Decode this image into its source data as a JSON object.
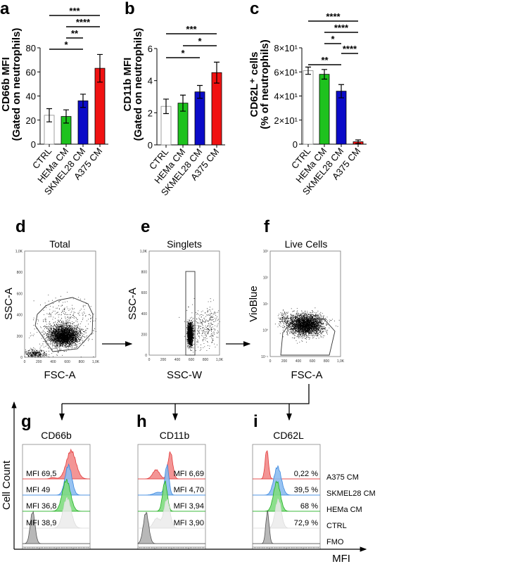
{
  "chart_data": [
    {
      "panel": "a",
      "type": "bar",
      "ylabel_line1": "CD66b MFI",
      "ylabel_line2": "(Gated on neutrophils)",
      "categories": [
        "CTRL",
        "HEMa CM",
        "SKMEL28 CM",
        "A375 CM"
      ],
      "values": [
        24,
        23,
        36,
        63
      ],
      "errors": [
        5.5,
        5.5,
        5.5,
        11.5
      ],
      "ylim": [
        0,
        80
      ],
      "yticks": [
        0,
        20,
        40,
        60,
        80
      ],
      "ytick_labels": [
        "0",
        "20",
        "40",
        "60",
        "80"
      ],
      "significance": [
        {
          "from": 0,
          "to": 3,
          "label": "***"
        },
        {
          "from": 1,
          "to": 3,
          "label": "****"
        },
        {
          "from": 1,
          "to": 2,
          "label": "**"
        },
        {
          "from": 0,
          "to": 2,
          "label": "*"
        }
      ]
    },
    {
      "panel": "b",
      "type": "bar",
      "ylabel_line1": "CD11b MFI",
      "ylabel_line2": "(Gated on neutrophils)",
      "categories": [
        "CTRL",
        "HEMa CM",
        "SKMEL28 CM",
        "A375 CM"
      ],
      "values": [
        2.4,
        2.6,
        3.3,
        4.5
      ],
      "errors": [
        0.45,
        0.5,
        0.4,
        0.65
      ],
      "ylim": [
        0,
        6
      ],
      "yticks": [
        0,
        2,
        4,
        6
      ],
      "ytick_labels": [
        "0",
        "2",
        "4",
        "6"
      ],
      "significance": [
        {
          "from": 0,
          "to": 3,
          "label": "***"
        },
        {
          "from": 1,
          "to": 3,
          "label": "*"
        },
        {
          "from": 0,
          "to": 2,
          "label": "*"
        }
      ]
    },
    {
      "panel": "c",
      "type": "bar",
      "ylabel_line1": "CD62L⁺ cells",
      "ylabel_line2": "(% of neutrophils)",
      "categories": [
        "CTRL",
        "HEMa CM",
        "SKMEL28 CM",
        "A375 CM"
      ],
      "values": [
        61,
        58,
        44,
        2
      ],
      "errors": [
        3,
        4,
        5.5,
        1.5
      ],
      "ylim": [
        0,
        80
      ],
      "yticks": [
        0,
        20,
        40,
        60,
        80
      ],
      "ytick_labels": [
        "0",
        "2×10¹",
        "4×10¹",
        "6×10¹",
        "8×10¹"
      ],
      "significance": [
        {
          "from": 0,
          "to": 3,
          "label": "****"
        },
        {
          "from": 1,
          "to": 3,
          "label": "****"
        },
        {
          "from": 1,
          "to": 2,
          "label": "*"
        },
        {
          "from": 2,
          "to": 3,
          "label": "****"
        },
        {
          "from": 0,
          "to": 2,
          "label": "**"
        }
      ]
    }
  ],
  "colors": {
    "CTRL": "#ffffff",
    "HEMa CM": "#1ec21e",
    "SKMEL28 CM": "#0b0bc8",
    "A375 CM": "#f01212"
  },
  "gating": {
    "d": {
      "label": "d",
      "title": "Total",
      "xlabel": "FSC-A",
      "ylabel": "SSC-A",
      "xticks": [
        "0",
        "200",
        "400",
        "600",
        "800",
        "1,0K"
      ],
      "yticks": [
        "0",
        "200",
        "400",
        "600",
        "800",
        "1,0K"
      ]
    },
    "e": {
      "label": "e",
      "title": "Singlets",
      "xlabel": "SSC-W",
      "ylabel": "SSC-A",
      "xticks": [
        "0",
        "200",
        "400",
        "600",
        "800",
        "1,0K"
      ],
      "yticks": [
        "0",
        "200",
        "400",
        "600",
        "800",
        "1,0K"
      ]
    },
    "f": {
      "label": "f",
      "title": "Live Cells",
      "xlabel": "FSC-A",
      "ylabel": "VioBlue",
      "xticks": [
        "0",
        "200",
        "400",
        "600",
        "800",
        "1,0K"
      ],
      "yticks": [
        "10⁻¹",
        "10⁰",
        "10¹",
        "10²",
        "10³"
      ]
    }
  },
  "histograms": {
    "y_axis": "Cell Count",
    "x_axis": "MFI",
    "legend": [
      "A375 CM",
      "SKMEL28 CM",
      "HEMa CM",
      "CTRL",
      "FMO"
    ],
    "g": {
      "label": "g",
      "title": "CD66b",
      "values": [
        "MFI 69,5",
        "MFI 49",
        "MFI 36,8",
        "MFI 38,9"
      ]
    },
    "h": {
      "label": "h",
      "title": "CD11b",
      "values": [
        "MFI 6,69",
        "MFI 4,70",
        "MFI 3,94",
        "MFI 3,90"
      ]
    },
    "i": {
      "label": "i",
      "title": "CD62L",
      "values": [
        "0,22 %",
        "39,5 %",
        "68 %",
        "72,9 %"
      ]
    }
  }
}
